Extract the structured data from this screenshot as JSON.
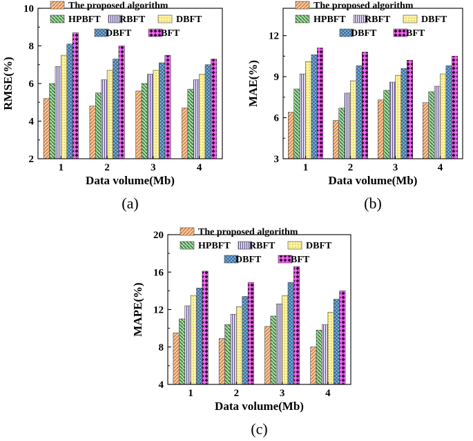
{
  "chart_data": [
    {
      "id": "a",
      "type": "bar",
      "panel_label": "(a)",
      "xlabel": "Data volume(Mb)",
      "ylabel": "RMSE(%)",
      "categories": [
        "1",
        "2",
        "3",
        "4"
      ],
      "ylim": [
        2,
        10
      ],
      "yticks": [
        2,
        4,
        6,
        8,
        10
      ],
      "series": [
        {
          "name": "The proposed algorithm",
          "values": [
            5.2,
            4.8,
            5.6,
            4.7
          ]
        },
        {
          "name": "HPBFT",
          "values": [
            6.0,
            5.5,
            6.0,
            5.7
          ]
        },
        {
          "name": "RBFT",
          "values": [
            6.9,
            6.2,
            6.5,
            6.2
          ]
        },
        {
          "name": "DBFT",
          "values": [
            7.5,
            6.7,
            6.7,
            6.5
          ]
        },
        {
          "name": "DBFT",
          "values": [
            8.1,
            7.3,
            7.1,
            7.0
          ]
        },
        {
          "name": "BFT",
          "values": [
            8.7,
            8.0,
            7.5,
            7.3
          ]
        }
      ]
    },
    {
      "id": "b",
      "type": "bar",
      "panel_label": "(b)",
      "xlabel": "Data volume(Mb)",
      "ylabel": "MAE(%)",
      "categories": [
        "1",
        "2",
        "3",
        "4"
      ],
      "ylim": [
        3,
        14
      ],
      "yticks": [
        3,
        6,
        9,
        12
      ],
      "series": [
        {
          "name": "The proposed algorithm",
          "values": [
            6.4,
            5.8,
            7.3,
            7.1
          ]
        },
        {
          "name": "HPBFT",
          "values": [
            8.1,
            6.7,
            8.0,
            7.9
          ]
        },
        {
          "name": "RBFT",
          "values": [
            9.2,
            7.8,
            8.6,
            8.3
          ]
        },
        {
          "name": "DBFT",
          "values": [
            10.1,
            8.7,
            9.1,
            9.2
          ]
        },
        {
          "name": "DBFT",
          "values": [
            10.6,
            9.8,
            9.6,
            9.8
          ]
        },
        {
          "name": "BFT",
          "values": [
            11.1,
            10.8,
            10.2,
            10.5
          ]
        }
      ]
    },
    {
      "id": "c",
      "type": "bar",
      "panel_label": "(c)",
      "xlabel": "Data volume(Mb)",
      "ylabel": "MAPE(%)",
      "categories": [
        "1",
        "2",
        "3",
        "4"
      ],
      "ylim": [
        4,
        20
      ],
      "yticks": [
        4,
        8,
        12,
        16,
        20
      ],
      "series": [
        {
          "name": "The proposed algorithm",
          "values": [
            9.5,
            8.9,
            10.2,
            8.0
          ]
        },
        {
          "name": "HPBFT",
          "values": [
            11.0,
            10.4,
            11.3,
            9.8
          ]
        },
        {
          "name": "RBFT",
          "values": [
            12.4,
            11.5,
            12.6,
            10.4
          ]
        },
        {
          "name": "DBFT",
          "values": [
            13.5,
            12.3,
            13.5,
            11.7
          ]
        },
        {
          "name": "DBFT",
          "values": [
            14.3,
            13.4,
            14.9,
            13.1
          ]
        },
        {
          "name": "BFT",
          "values": [
            16.1,
            14.9,
            16.6,
            14.0
          ]
        }
      ]
    }
  ]
}
